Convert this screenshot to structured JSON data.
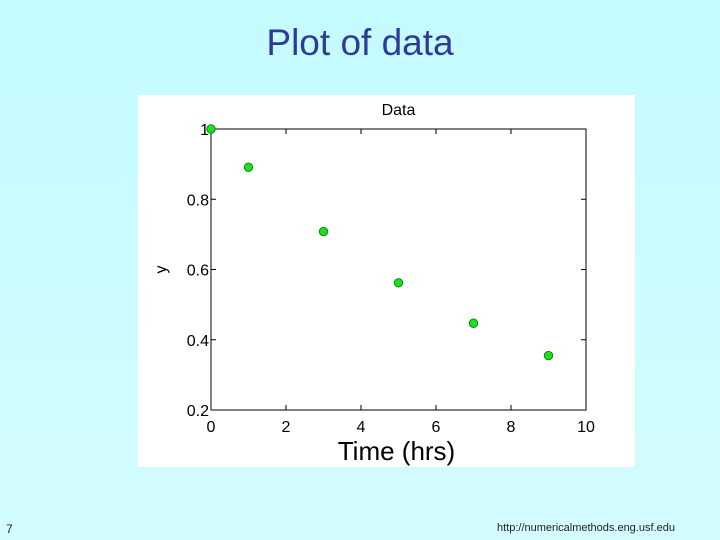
{
  "slide": {
    "title": "Plot of data",
    "number": "7",
    "footer_url": "http://numericalmethods.eng.usf.edu"
  },
  "colors": {
    "background": "#c4fbff",
    "title": "#2f3a96",
    "marker_fill": "#1fe01f",
    "marker_edge": "#0a8a0a"
  },
  "chart_data": {
    "type": "scatter",
    "title": "Data",
    "xlabel": "Time (hrs)",
    "ylabel": "y",
    "xlim": [
      0,
      10
    ],
    "ylim": [
      0.2,
      1
    ],
    "xticks": [
      0,
      2,
      4,
      6,
      8,
      10
    ],
    "yticks": [
      0.2,
      0.4,
      0.6,
      0.8,
      1
    ],
    "x": [
      0,
      1,
      3,
      5,
      7,
      9
    ],
    "y": [
      1,
      0.891,
      0.708,
      0.562,
      0.447,
      0.355
    ],
    "grid": false
  }
}
